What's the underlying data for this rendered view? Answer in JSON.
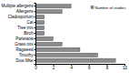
{
  "chart_data": {
    "type": "bar",
    "orientation": "horizontal",
    "categories": [
      "Multiple allergens",
      "Allergens",
      "Cladosporium",
      "Cat",
      "Tree mix",
      "Birch",
      "Parietaria",
      "Grass mix",
      "Ragweed",
      "Timothy",
      "Dust Mite"
    ],
    "series": [
      {
        "name": "Number of studies",
        "color": "#8c8c8c",
        "values": [
          4,
          3,
          1,
          1,
          1,
          1,
          2,
          3,
          5,
          7,
          9
        ]
      }
    ],
    "xlim": [
      0,
      10
    ],
    "xticks": [
      0,
      2,
      4,
      6,
      8,
      10
    ],
    "legend": "top-right",
    "grid": false
  }
}
